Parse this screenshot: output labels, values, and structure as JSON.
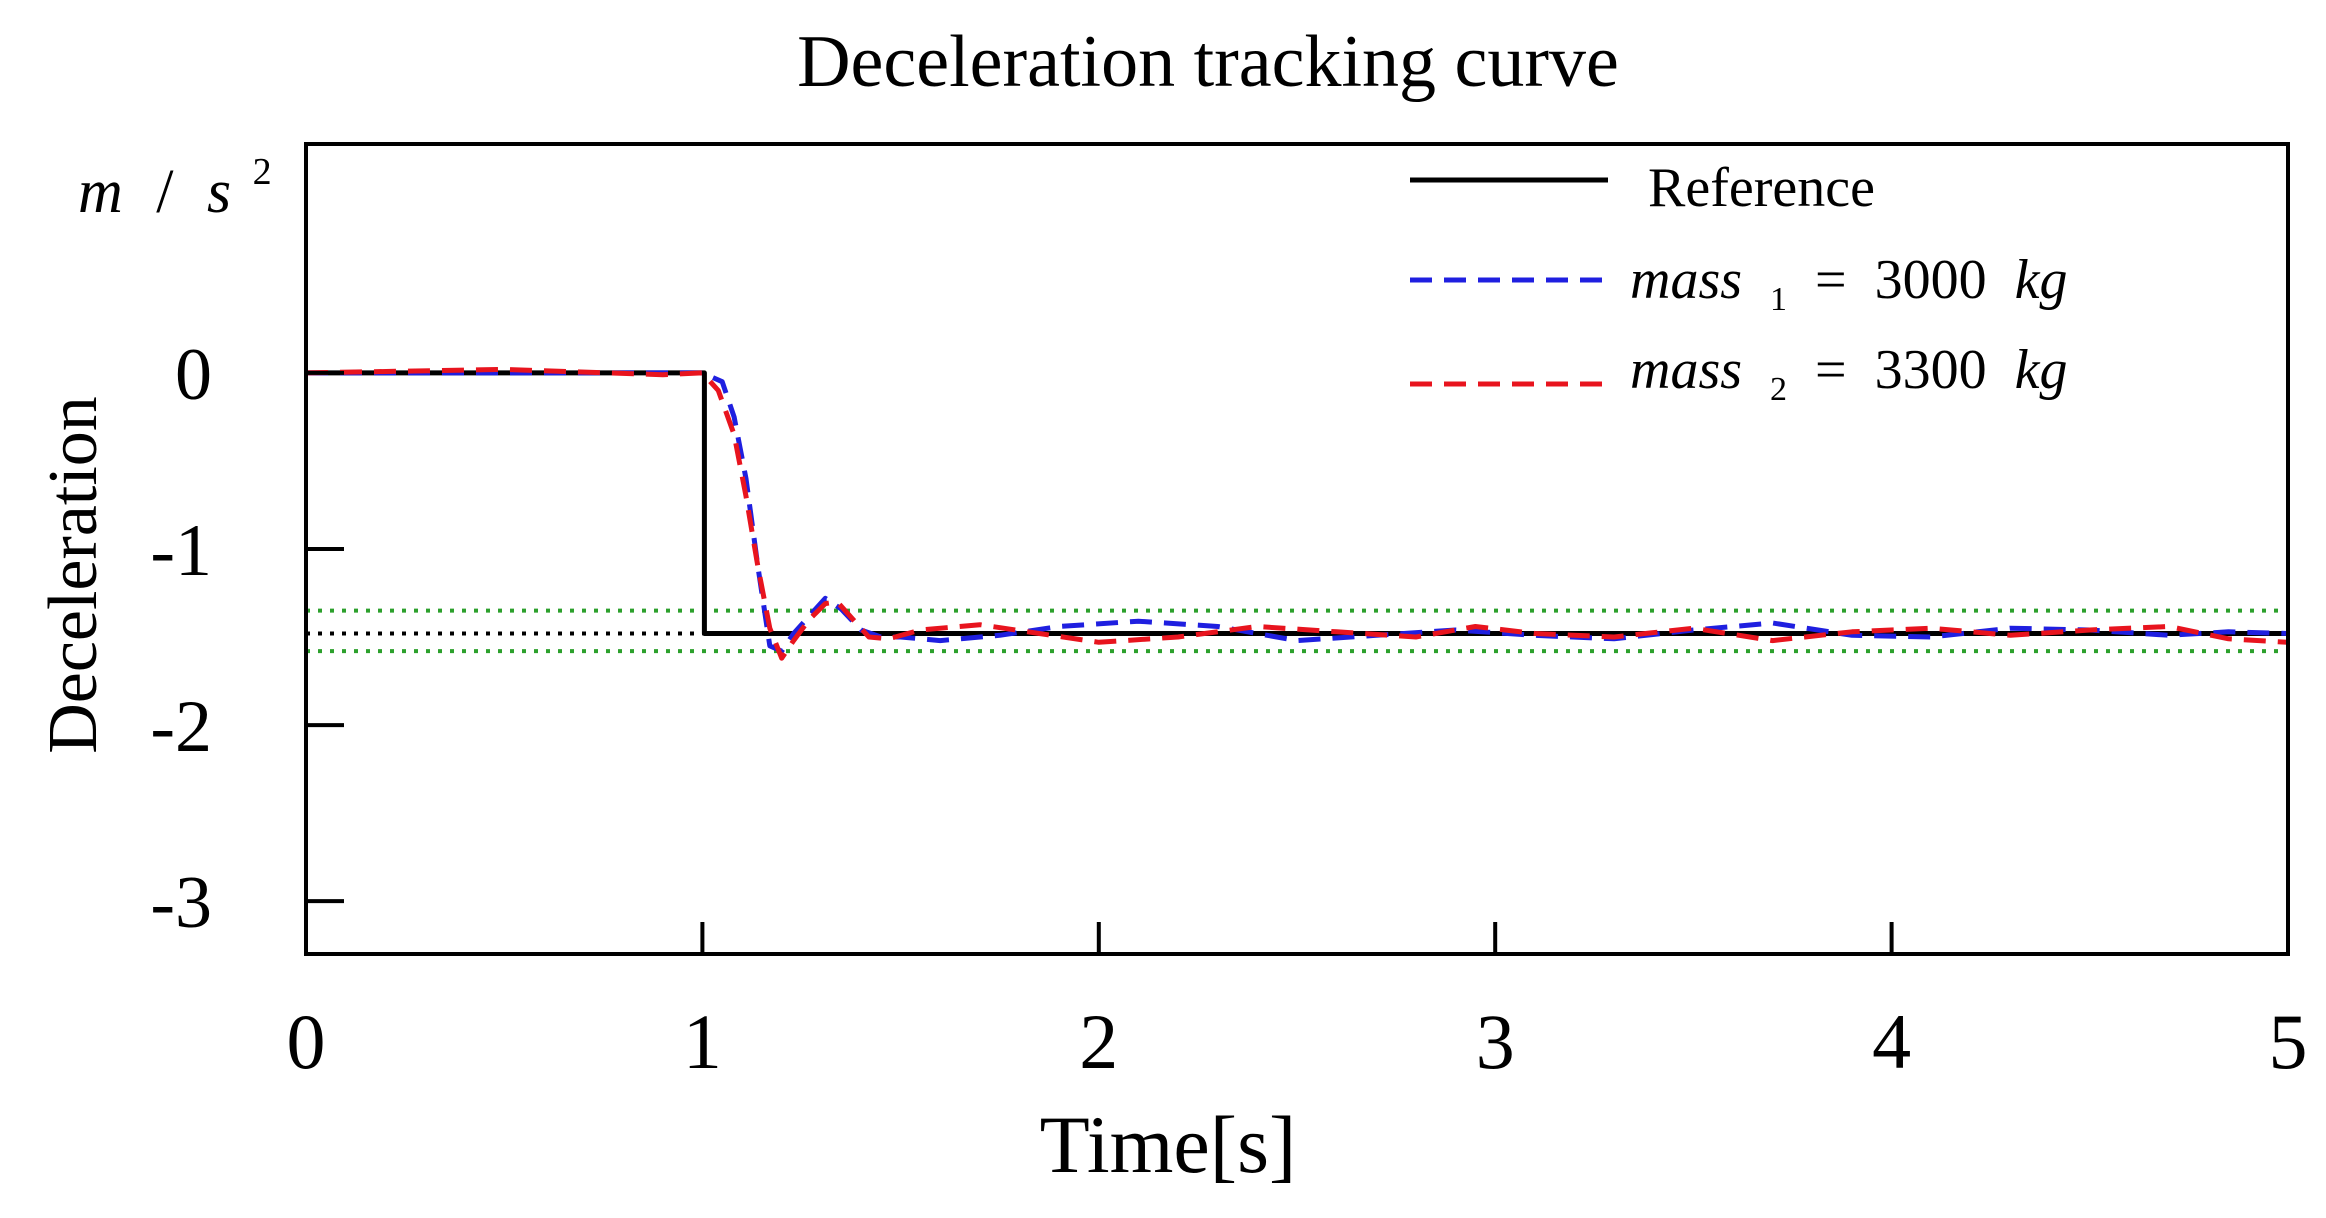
{
  "chart_data": {
    "type": "line",
    "title": "Deceleration tracking curve",
    "xlabel": "Time[s]",
    "ylabel": "Deceleration",
    "yunit": {
      "base1": "m",
      "sep": "/",
      "base2": "s",
      "exp": "2"
    },
    "xlim": [
      0,
      5
    ],
    "ylim": [
      -3.3,
      1.3
    ],
    "xticks": [
      0,
      1,
      2,
      3,
      4,
      5
    ],
    "yticks": [
      0,
      -1,
      -2,
      -3
    ],
    "xtick_labels": [
      "0",
      "1",
      "2",
      "3",
      "4",
      "5"
    ],
    "ytick_labels": [
      "0",
      "-1",
      "-2",
      "-3"
    ],
    "grid": false,
    "legend_position": "top-right",
    "reference_lines": [
      {
        "y": -1.48,
        "color": "#000000",
        "style": "dotted",
        "x_range": [
          0,
          1
        ]
      },
      {
        "y": -1.35,
        "color": "#2ca02c",
        "style": "dotted",
        "x_range": [
          0,
          5
        ]
      },
      {
        "y": -1.58,
        "color": "#2ca02c",
        "style": "dotted",
        "x_range": [
          0,
          5
        ]
      }
    ],
    "series": [
      {
        "name": "Reference",
        "legend": {
          "text": "Reference"
        },
        "color": "#000000",
        "style": "solid",
        "x": [
          0,
          0.995,
          0.995,
          1.005,
          1.005,
          5
        ],
        "y": [
          0,
          0,
          0,
          0,
          -1.48,
          -1.48
        ]
      },
      {
        "name": "mass 1 = 3000 kg",
        "legend": {
          "var": "mass",
          "sub": "1",
          "eq": "=",
          "value": "3000",
          "unit": "kg"
        },
        "color": "#1f1fe0",
        "style": "dashed",
        "x": [
          0,
          0.5,
          1.0,
          1.05,
          1.08,
          1.11,
          1.14,
          1.17,
          1.2,
          1.23,
          1.27,
          1.31,
          1.35,
          1.4,
          1.45,
          1.5,
          1.6,
          1.75,
          1.9,
          2.1,
          2.3,
          2.5,
          2.7,
          2.9,
          3.1,
          3.3,
          3.5,
          3.7,
          3.9,
          4.1,
          4.3,
          4.5,
          4.7,
          4.85,
          5.0
        ],
        "y": [
          0,
          0,
          0,
          -0.05,
          -0.25,
          -0.6,
          -1.1,
          -1.55,
          -1.58,
          -1.48,
          -1.38,
          -1.28,
          -1.34,
          -1.46,
          -1.5,
          -1.5,
          -1.52,
          -1.49,
          -1.44,
          -1.41,
          -1.44,
          -1.52,
          -1.49,
          -1.46,
          -1.49,
          -1.51,
          -1.46,
          -1.42,
          -1.49,
          -1.5,
          -1.45,
          -1.46,
          -1.49,
          -1.47,
          -1.48
        ]
      },
      {
        "name": "mass 2 = 3300 kg",
        "legend": {
          "var": "mass",
          "sub": "2",
          "eq": "=",
          "value": "3300",
          "unit": "kg"
        },
        "color": "#e8141e",
        "style": "dashed",
        "x": [
          0,
          0.5,
          0.9,
          1.0,
          1.04,
          1.08,
          1.11,
          1.14,
          1.17,
          1.2,
          1.23,
          1.27,
          1.31,
          1.34,
          1.38,
          1.42,
          1.47,
          1.55,
          1.7,
          1.85,
          2.0,
          2.2,
          2.4,
          2.6,
          2.8,
          2.95,
          3.1,
          3.3,
          3.5,
          3.7,
          3.9,
          4.1,
          4.3,
          4.5,
          4.7,
          4.85,
          5.0
        ],
        "y": [
          0,
          0.02,
          -0.01,
          0,
          -0.1,
          -0.35,
          -0.7,
          -1.1,
          -1.45,
          -1.62,
          -1.52,
          -1.4,
          -1.31,
          -1.3,
          -1.4,
          -1.5,
          -1.51,
          -1.46,
          -1.43,
          -1.48,
          -1.53,
          -1.5,
          -1.44,
          -1.47,
          -1.5,
          -1.44,
          -1.48,
          -1.5,
          -1.45,
          -1.52,
          -1.47,
          -1.45,
          -1.49,
          -1.46,
          -1.44,
          -1.51,
          -1.53
        ]
      }
    ]
  }
}
